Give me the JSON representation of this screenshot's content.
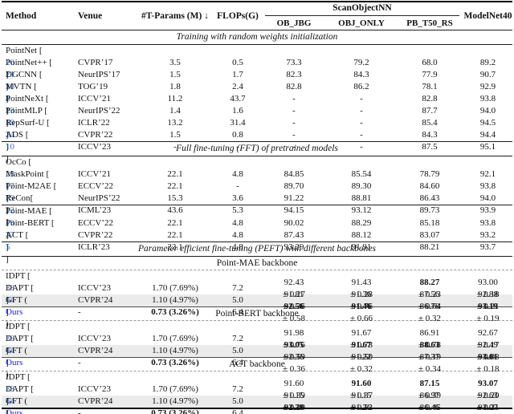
{
  "colors": {
    "citation_blue": "#3b78cc",
    "ours_blue": "#1b1bdf",
    "highlight_row": "#ebebeb"
  },
  "header": {
    "method": "Method",
    "venue": "Venue",
    "tparams": "#T-Params (M) ↓",
    "flops": "FLOPs(G)",
    "scanobjectnn": "ScanObjectNN",
    "subcolumns": [
      "OB_JBG",
      "OBJ_ONLY",
      "PB_T50_RS"
    ],
    "modelnet40": "ModelNet40"
  },
  "blocks": [
    {
      "kind": "label",
      "italic": true,
      "text": "Training with random weights initialization"
    },
    {
      "kind": "rule"
    },
    {
      "kind": "rows",
      "rows": [
        {
          "method": "PointNet",
          "cite": "20",
          "venue": "CVPR’17",
          "params": "3.5",
          "flops": "0.5",
          "cells": [
            "73.3",
            "79.2",
            "68.0",
            "89.2"
          ]
        },
        {
          "method": "PointNet++",
          "cite": "21",
          "venue": "NeurIPS’17",
          "params": "1.5",
          "flops": "1.7",
          "cells": [
            "82.3",
            "84.3",
            "77.9",
            "90.7"
          ]
        },
        {
          "method": "DGCNN",
          "cite": "30",
          "venue": "TOG’19",
          "params": "1.8",
          "flops": "2.4",
          "cells": [
            "82.8",
            "86.2",
            "78.1",
            "92.9"
          ]
        },
        {
          "method": "MVTN",
          "cite": "8",
          "venue": "ICCV’21",
          "params": "11.2",
          "flops": "43.7",
          "cells": [
            "-",
            "-",
            "82.8",
            "93.8"
          ]
        },
        {
          "method": "PointNeXt",
          "cite": "23",
          "venue": "NeurIPS’22",
          "params": "1.4",
          "flops": "1.6",
          "cells": [
            "-",
            "-",
            "87.7",
            "94.0"
          ]
        },
        {
          "method": "PointMLP",
          "cite": "18",
          "venue": "ICLR’22",
          "params": "13.2",
          "flops": "31.4",
          "cells": [
            "-",
            "-",
            "85.4",
            "94.5"
          ]
        },
        {
          "method": "RepSurf-U",
          "cite": "24",
          "venue": "CVPR’22",
          "params": "1.5",
          "flops": "0.8",
          "cells": [
            "-",
            "-",
            "84.3",
            "94.4"
          ]
        },
        {
          "method": "ADS",
          "cite": "10",
          "venue": "ICCV’23",
          "params": "-",
          "flops": "-",
          "cells": [
            "-",
            "-",
            "87.5",
            "95.1"
          ]
        }
      ]
    },
    {
      "kind": "rule"
    },
    {
      "kind": "label",
      "italic": true,
      "text": "Full fine-tuning (FFT) of pretrained models"
    },
    {
      "kind": "rule"
    },
    {
      "kind": "rows",
      "rows": [
        {
          "method": "OcCo",
          "cite": "29",
          "venue": "ICCV’21",
          "params": "22.1",
          "flops": "4.8",
          "cells": [
            "84.85",
            "85.54",
            "78.79",
            "92.1"
          ]
        },
        {
          "method": "MaskPoint",
          "cite": "17",
          "venue": "ECCV’22",
          "params": "22.1",
          "flops": "-",
          "cells": [
            "89.70",
            "89.30",
            "84.60",
            "93.8"
          ]
        },
        {
          "method": "Point-M2AE",
          "cite": "39",
          "venue": "NeurIPS’22",
          "params": "15.3",
          "flops": "3.6",
          "cells": [
            "91.22",
            "88.81",
            "86.43",
            "94.0"
          ]
        },
        {
          "method": "ReCon",
          "cite": "22",
          "cite_space": false,
          "venue": "ICML’23",
          "params": "43.6",
          "flops": "5.3",
          "cells": [
            "94.15",
            "93.12",
            "89.73",
            "93.9"
          ]
        }
      ]
    },
    {
      "kind": "rule"
    },
    {
      "kind": "rows",
      "rows": [
        {
          "method": "Point-MAE",
          "cite": "19",
          "venue": "ECCV’22",
          "params": "22.1",
          "flops": "4.8",
          "cells": [
            "90.02",
            "88.29",
            "85.18",
            "93.8"
          ]
        },
        {
          "method": "Point-BERT",
          "cite": "37",
          "venue": "CVPR’22",
          "params": "22.1",
          "flops": "4.8",
          "cells": [
            "87.43",
            "88.12",
            "83.07",
            "93.2"
          ]
        },
        {
          "method": "ACT",
          "cite": "5",
          "venue": "ICLR’23",
          "params": "22.1",
          "flops": "4.8",
          "cells": [
            "93.29",
            "91.91",
            "88.21",
            "93.7"
          ]
        }
      ]
    },
    {
      "kind": "rule"
    },
    {
      "kind": "label",
      "italic": true,
      "text": "Parameter efficient fine-tuning (PEFT) with different backbones"
    },
    {
      "kind": "rule"
    },
    {
      "kind": "label",
      "italic": false,
      "text": "Point-MAE backbone"
    },
    {
      "kind": "rule",
      "style": "dashed"
    },
    {
      "kind": "rows",
      "rows": [
        {
          "method": "IDPT",
          "cite": "38",
          "venue": "ICCV’23",
          "params": "1.70 (7.69%)",
          "flops": "7.2",
          "cells": [
            {
              "v": "92.43",
              "pm": "0.27",
              "b": false
            },
            {
              "v": "91.43",
              "pm": "0.28",
              "b": false
            },
            {
              "v": "88.27",
              "pm": "0.23",
              "b": true
            },
            {
              "v": "93.00",
              "pm": "0.18",
              "b": false
            }
          ]
        },
        {
          "method": "DAPT",
          "cite": "44",
          "venue": "CVPR’24",
          "params": "1.10 (4.97%)",
          "flops": "5.0",
          "cells": [
            {
              "v": "91.81",
              "pm": "0.36",
              "b": false
            },
            {
              "v": "91.36",
              "pm": "0.76",
              "b": false
            },
            {
              "v": "87.56",
              "pm": "0.64",
              "b": false
            },
            {
              "v": "92.88",
              "pm": "0.21",
              "b": false
            }
          ]
        },
        {
          "method": "GFT",
          "ours": "Ours",
          "venue": "-",
          "params": "0.73 (3.26%)",
          "params_bold": true,
          "flops": "6.4",
          "hl": true,
          "cells": [
            {
              "v": "92.56",
              "pm": "0.58",
              "b": true
            },
            {
              "v": "91.46",
              "pm": "0.66",
              "b": true
            },
            {
              "v": "86.78",
              "pm": "0.32",
              "b": false
            },
            {
              "v": "93.19",
              "pm": "0.19",
              "b": true
            }
          ]
        }
      ]
    },
    {
      "kind": "rule",
      "style": "gray"
    },
    {
      "kind": "label",
      "italic": false,
      "text": "Point-BERT backbone"
    },
    {
      "kind": "rule",
      "style": "dashed"
    },
    {
      "kind": "rows",
      "rows": [
        {
          "method": "IDPT",
          "cite": "38",
          "venue": "ICCV’23",
          "params": "1.70 (7.69%)",
          "flops": "7.2",
          "cells": [
            {
              "v": "91.98",
              "pm": "0.76",
              "b": false
            },
            {
              "v": "91.67",
              "pm": "0.78",
              "b": false
            },
            {
              "v": "86.91",
              "pm": "0.78",
              "b": false
            },
            {
              "v": "92.67",
              "pm": "0.17",
              "b": false
            }
          ]
        },
        {
          "method": "DAPT",
          "cite": "44",
          "venue": "CVPR’24",
          "params": "1.10 (4.97%)",
          "flops": "5.0",
          "cells": [
            {
              "v": "93.05",
              "pm": "0.59",
              "b": true
            },
            {
              "v": "91.67",
              "pm": "0.50",
              "b": true
            },
            {
              "v": "88.63",
              "pm": "0.19",
              "b": true
            },
            {
              "v": "92.49",
              "pm": "0.08",
              "b": false
            }
          ]
        },
        {
          "method": "GFT",
          "ours": "Ours",
          "venue": "-",
          "params": "0.73 (3.26%)",
          "params_bold": true,
          "flops": "6.4",
          "hl": true,
          "cells": [
            {
              "v": "92.36",
              "pm": "0.36",
              "b": false
            },
            {
              "v": "91.22",
              "pm": "0.32",
              "b": false
            },
            {
              "v": "87.37",
              "pm": "0.34",
              "b": false
            },
            {
              "v": "93.01",
              "pm": "0.18",
              "b": true
            }
          ]
        }
      ]
    },
    {
      "kind": "rule",
      "style": "gray"
    },
    {
      "kind": "label",
      "italic": false,
      "text": "ACT backbone"
    },
    {
      "kind": "rule",
      "style": "dashed"
    },
    {
      "kind": "rows",
      "rows": [
        {
          "method": "IDPT",
          "cite": "38",
          "venue": "ICCV’23",
          "params": "1.70 (7.69%)",
          "flops": "7.2",
          "cells": [
            {
              "v": "91.60",
              "pm": "0.39",
              "b": false
            },
            {
              "v": "91.60",
              "pm": "0.37",
              "b": true
            },
            {
              "v": "87.15",
              "pm": "0.39",
              "b": true
            },
            {
              "v": "93.07",
              "pm": "0.20",
              "b": true
            }
          ]
        },
        {
          "method": "DAPT",
          "cite": "44",
          "venue": "CVPR’24",
          "params": "1.10 (4.97%)",
          "flops": "5.0",
          "cells": [
            {
              "v": "91.15",
              "pm": "0.20",
              "b": false
            },
            {
              "v": "91.15",
              "pm": "0.52",
              "b": false
            },
            {
              "v": "86.97",
              "pm": "0.45",
              "b": false
            },
            {
              "v": "92.63",
              "pm": "0.21",
              "b": false
            }
          ]
        },
        {
          "method": "GFT",
          "ours": "Ours",
          "venue": "-",
          "params": "0.73 (3.26%)",
          "params_bold": true,
          "flops": "6.4",
          "hl": true,
          "cells": [
            {
              "v": "92.39",
              "pm": "0.48",
              "b": true
            },
            {
              "v": "91.26",
              "pm": "0.28",
              "b": false
            },
            {
              "v": "86.46",
              "pm": "0.43",
              "b": false
            },
            {
              "v": "93.07",
              "pm": "0.21",
              "b": false
            }
          ]
        }
      ]
    }
  ]
}
